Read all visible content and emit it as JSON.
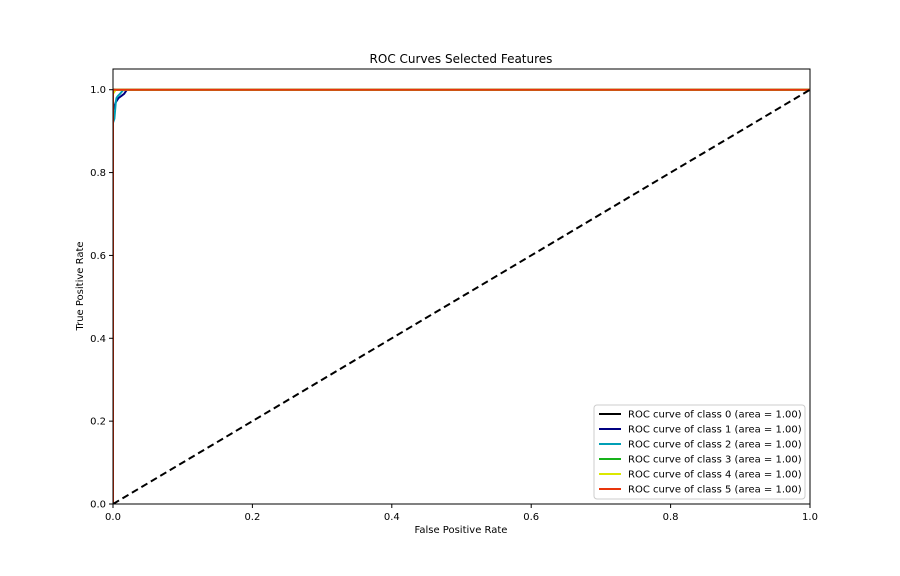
{
  "chart_data": {
    "type": "line",
    "title": "ROC Curves Selected Features",
    "xlabel": "False Positive Rate",
    "ylabel": "True Positive Rate",
    "xlim": [
      0.0,
      1.0
    ],
    "ylim": [
      0.0,
      1.05
    ],
    "x_ticks": [
      "0.0",
      "0.2",
      "0.4",
      "0.6",
      "0.8",
      "1.0"
    ],
    "y_ticks": [
      "0.0",
      "0.2",
      "0.4",
      "0.6",
      "0.8",
      "1.0"
    ],
    "grid": false,
    "legend_position": "lower-right",
    "series": [
      {
        "name": "ROC curve of class 0 (area = 1.00)",
        "color": "#000000",
        "points": [
          [
            0.0,
            0.0
          ],
          [
            0.0,
            1.0
          ],
          [
            1.0,
            1.0
          ]
        ]
      },
      {
        "name": "ROC curve of class 1 (area = 1.00)",
        "color": "#000080",
        "points": [
          [
            0.0,
            0.0
          ],
          [
            0.0,
            0.95
          ],
          [
            0.004,
            0.97
          ],
          [
            0.008,
            0.98
          ],
          [
            0.012,
            0.985
          ],
          [
            0.016,
            0.99
          ],
          [
            0.02,
            1.0
          ],
          [
            1.0,
            1.0
          ]
        ]
      },
      {
        "name": "ROC curve of class 2 (area = 1.00)",
        "color": "#009fb5",
        "points": [
          [
            0.0,
            0.0
          ],
          [
            0.0,
            0.92
          ],
          [
            0.002,
            0.93
          ],
          [
            0.003,
            0.95
          ],
          [
            0.004,
            0.97
          ],
          [
            0.005,
            0.98
          ],
          [
            0.007,
            0.985
          ],
          [
            0.01,
            0.99
          ],
          [
            0.015,
            1.0
          ],
          [
            1.0,
            1.0
          ]
        ]
      },
      {
        "name": "ROC curve of class 3 (area = 1.00)",
        "color": "#17b21a",
        "points": [
          [
            0.0,
            0.0
          ],
          [
            0.0,
            1.0
          ],
          [
            1.0,
            1.0
          ]
        ]
      },
      {
        "name": "ROC curve of class 4 (area = 1.00)",
        "color": "#dbe800",
        "points": [
          [
            0.0,
            0.0
          ],
          [
            0.0,
            0.99
          ],
          [
            0.004,
            1.0
          ],
          [
            1.0,
            1.0
          ]
        ]
      },
      {
        "name": "ROC curve of class 5 (area = 1.00)",
        "color": "#e8350c",
        "points": [
          [
            0.0,
            0.0
          ],
          [
            0.0,
            1.0
          ],
          [
            1.0,
            1.0
          ]
        ]
      }
    ],
    "reference_line": {
      "color": "#000000",
      "style": "dashed",
      "points": [
        [
          0.0,
          0.0
        ],
        [
          1.0,
          1.0
        ]
      ]
    }
  }
}
